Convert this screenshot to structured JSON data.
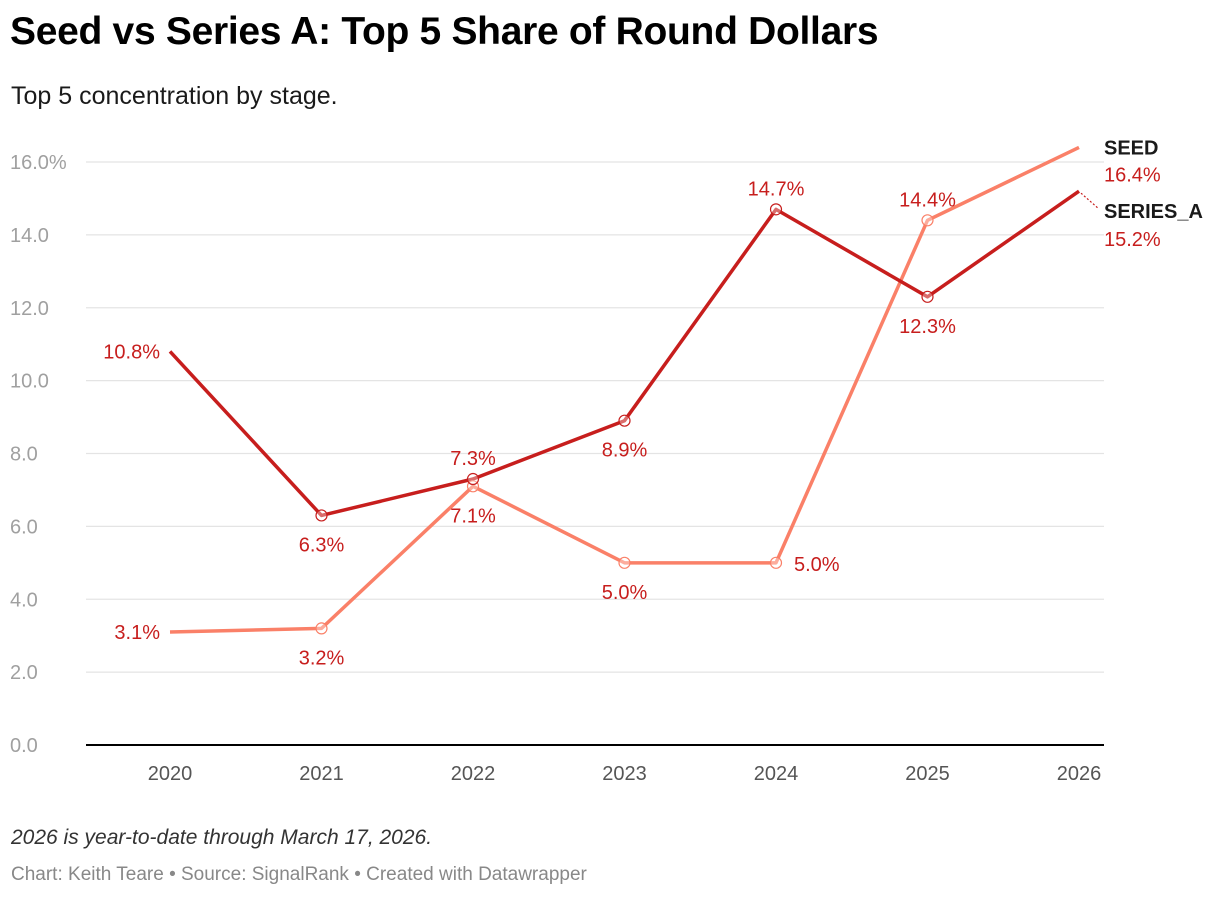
{
  "header": {
    "title": "Seed vs Series A: Top 5 Share of Round Dollars",
    "subtitle": "Top 5 concentration by stage."
  },
  "footer": {
    "note": "2026 is year-to-date through March 17, 2026.",
    "credit": "Chart: Keith Teare • Source: SignalRank • Created with Datawrapper"
  },
  "colors": {
    "series_a": "#c71e1d",
    "seed": "#fa8068",
    "grid": "#e4e4e4",
    "baseline": "#000000"
  },
  "chart_data": {
    "type": "line",
    "title": "Seed vs Series A: Top 5 Share of Round Dollars",
    "xlabel": "",
    "ylabel": "",
    "categories": [
      "2020",
      "2021",
      "2022",
      "2023",
      "2024",
      "2025",
      "2026"
    ],
    "ylim": [
      0,
      16
    ],
    "yticks": [
      0,
      2,
      4,
      6,
      8,
      10,
      12,
      14,
      16
    ],
    "ytick_labels": [
      "0.0",
      "2.0",
      "4.0",
      "6.0",
      "8.0",
      "10.0",
      "12.0",
      "14.0",
      "16.0%"
    ],
    "grid": true,
    "series": [
      {
        "name": "SERIES_A",
        "color": "#c71e1d",
        "values": [
          10.8,
          6.3,
          7.3,
          8.9,
          14.7,
          12.3,
          15.2
        ],
        "labels": [
          "10.8%",
          "6.3%",
          "7.3%",
          "8.9%",
          "14.7%",
          "12.3%",
          "15.2%"
        ],
        "label_positions": [
          "left",
          "below",
          "above",
          "below",
          "above",
          "below",
          "end"
        ]
      },
      {
        "name": "SEED",
        "color": "#fa8068",
        "values": [
          3.1,
          3.2,
          7.1,
          5.0,
          5.0,
          14.4,
          16.4
        ],
        "labels": [
          "3.1%",
          "3.2%",
          "7.1%",
          "5.0%",
          "5.0%",
          "14.4%",
          "16.4%"
        ],
        "label_positions": [
          "left",
          "below",
          "below",
          "below",
          "right",
          "above",
          "end"
        ]
      }
    ]
  }
}
